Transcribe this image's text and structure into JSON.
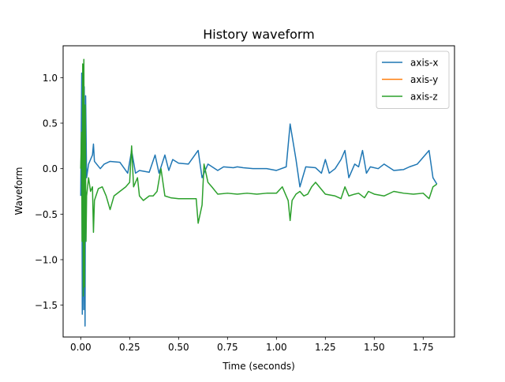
{
  "chart_data": {
    "type": "line",
    "title": "History waveform",
    "xlabel": "Time (seconds)",
    "ylabel": "Waveform",
    "xlim": [
      -0.09,
      1.91
    ],
    "ylim": [
      -1.85,
      1.35
    ],
    "x_ticks": [
      0.0,
      0.25,
      0.5,
      0.75,
      1.0,
      1.25,
      1.5,
      1.75
    ],
    "x_tick_labels": [
      "0.00",
      "0.25",
      "0.50",
      "0.75",
      "1.00",
      "1.25",
      "1.50",
      "1.75"
    ],
    "y_ticks": [
      -1.5,
      -1.0,
      -0.5,
      0.0,
      0.5,
      1.0
    ],
    "y_tick_labels": [
      "−1.5",
      "−1.0",
      "−0.5",
      "0.0",
      "0.5",
      "1.0"
    ],
    "grid": false,
    "legend_position": "top-right",
    "series": [
      {
        "name": "axis-x",
        "color": "#1f77b4",
        "points": [
          [
            0.0,
            -0.3
          ],
          [
            0.005,
            1.05
          ],
          [
            0.008,
            -1.6
          ],
          [
            0.012,
            0.4
          ],
          [
            0.015,
            -1.55
          ],
          [
            0.018,
            0.9
          ],
          [
            0.022,
            -1.73
          ],
          [
            0.025,
            0.8
          ],
          [
            0.03,
            -0.1
          ],
          [
            0.04,
            0.05
          ],
          [
            0.05,
            0.1
          ],
          [
            0.06,
            0.15
          ],
          [
            0.065,
            0.27
          ],
          [
            0.07,
            0.08
          ],
          [
            0.1,
            0.0
          ],
          [
            0.12,
            0.05
          ],
          [
            0.15,
            0.08
          ],
          [
            0.2,
            0.07
          ],
          [
            0.24,
            -0.05
          ],
          [
            0.26,
            0.2
          ],
          [
            0.28,
            -0.05
          ],
          [
            0.3,
            -0.02
          ],
          [
            0.35,
            -0.04
          ],
          [
            0.38,
            0.15
          ],
          [
            0.4,
            -0.05
          ],
          [
            0.43,
            0.15
          ],
          [
            0.45,
            -0.02
          ],
          [
            0.47,
            0.1
          ],
          [
            0.5,
            0.06
          ],
          [
            0.55,
            0.05
          ],
          [
            0.6,
            0.2
          ],
          [
            0.62,
            -0.1
          ],
          [
            0.65,
            0.05
          ],
          [
            0.7,
            -0.02
          ],
          [
            0.73,
            0.02
          ],
          [
            0.78,
            0.01
          ],
          [
            0.8,
            0.02
          ],
          [
            0.83,
            0.01
          ],
          [
            0.88,
            0.0
          ],
          [
            0.95,
            0.0
          ],
          [
            1.0,
            -0.02
          ],
          [
            1.05,
            0.02
          ],
          [
            1.07,
            0.49
          ],
          [
            1.1,
            0.1
          ],
          [
            1.12,
            -0.2
          ],
          [
            1.15,
            0.02
          ],
          [
            1.2,
            0.01
          ],
          [
            1.23,
            -0.05
          ],
          [
            1.25,
            0.1
          ],
          [
            1.27,
            -0.05
          ],
          [
            1.3,
            0.0
          ],
          [
            1.33,
            0.1
          ],
          [
            1.35,
            0.2
          ],
          [
            1.37,
            -0.1
          ],
          [
            1.4,
            0.05
          ],
          [
            1.42,
            0.02
          ],
          [
            1.44,
            0.2
          ],
          [
            1.46,
            -0.05
          ],
          [
            1.48,
            0.02
          ],
          [
            1.52,
            0.0
          ],
          [
            1.55,
            0.05
          ],
          [
            1.6,
            -0.02
          ],
          [
            1.65,
            -0.01
          ],
          [
            1.68,
            0.02
          ],
          [
            1.72,
            0.05
          ],
          [
            1.78,
            0.2
          ],
          [
            1.8,
            -0.1
          ],
          [
            1.82,
            -0.17
          ]
        ]
      },
      {
        "name": "axis-y",
        "color": "#ff7f0e",
        "points": []
      },
      {
        "name": "axis-z",
        "color": "#2ca02c",
        "points": [
          [
            0.0,
            0.0
          ],
          [
            0.004,
            0.4
          ],
          [
            0.007,
            -0.8
          ],
          [
            0.01,
            1.15
          ],
          [
            0.013,
            -1.4
          ],
          [
            0.016,
            1.2
          ],
          [
            0.019,
            -1.3
          ],
          [
            0.023,
            0.7
          ],
          [
            0.027,
            -0.8
          ],
          [
            0.03,
            -0.3
          ],
          [
            0.04,
            -0.1
          ],
          [
            0.05,
            -0.25
          ],
          [
            0.06,
            -0.2
          ],
          [
            0.065,
            -0.7
          ],
          [
            0.07,
            -0.35
          ],
          [
            0.09,
            -0.22
          ],
          [
            0.11,
            -0.2
          ],
          [
            0.13,
            -0.3
          ],
          [
            0.15,
            -0.45
          ],
          [
            0.17,
            -0.3
          ],
          [
            0.2,
            -0.25
          ],
          [
            0.23,
            -0.2
          ],
          [
            0.25,
            -0.15
          ],
          [
            0.26,
            0.25
          ],
          [
            0.27,
            -0.2
          ],
          [
            0.29,
            -0.1
          ],
          [
            0.3,
            -0.3
          ],
          [
            0.32,
            -0.35
          ],
          [
            0.35,
            -0.3
          ],
          [
            0.37,
            -0.3
          ],
          [
            0.39,
            -0.25
          ],
          [
            0.41,
            0.0
          ],
          [
            0.43,
            -0.3
          ],
          [
            0.46,
            -0.32
          ],
          [
            0.5,
            -0.33
          ],
          [
            0.55,
            -0.33
          ],
          [
            0.59,
            -0.33
          ],
          [
            0.6,
            -0.6
          ],
          [
            0.62,
            -0.4
          ],
          [
            0.63,
            0.05
          ],
          [
            0.65,
            -0.15
          ],
          [
            0.67,
            -0.2
          ],
          [
            0.7,
            -0.28
          ],
          [
            0.75,
            -0.27
          ],
          [
            0.8,
            -0.28
          ],
          [
            0.85,
            -0.27
          ],
          [
            0.9,
            -0.28
          ],
          [
            0.95,
            -0.27
          ],
          [
            1.0,
            -0.27
          ],
          [
            1.03,
            -0.2
          ],
          [
            1.05,
            -0.3
          ],
          [
            1.06,
            -0.35
          ],
          [
            1.07,
            -0.57
          ],
          [
            1.08,
            -0.35
          ],
          [
            1.1,
            -0.28
          ],
          [
            1.12,
            -0.25
          ],
          [
            1.14,
            -0.3
          ],
          [
            1.16,
            -0.28
          ],
          [
            1.18,
            -0.2
          ],
          [
            1.2,
            -0.15
          ],
          [
            1.25,
            -0.28
          ],
          [
            1.3,
            -0.3
          ],
          [
            1.33,
            -0.33
          ],
          [
            1.35,
            -0.2
          ],
          [
            1.37,
            -0.3
          ],
          [
            1.4,
            -0.28
          ],
          [
            1.42,
            -0.27
          ],
          [
            1.45,
            -0.32
          ],
          [
            1.47,
            -0.25
          ],
          [
            1.5,
            -0.28
          ],
          [
            1.55,
            -0.3
          ],
          [
            1.6,
            -0.25
          ],
          [
            1.65,
            -0.27
          ],
          [
            1.7,
            -0.28
          ],
          [
            1.75,
            -0.27
          ],
          [
            1.78,
            -0.33
          ],
          [
            1.8,
            -0.2
          ],
          [
            1.82,
            -0.17
          ]
        ]
      }
    ]
  }
}
